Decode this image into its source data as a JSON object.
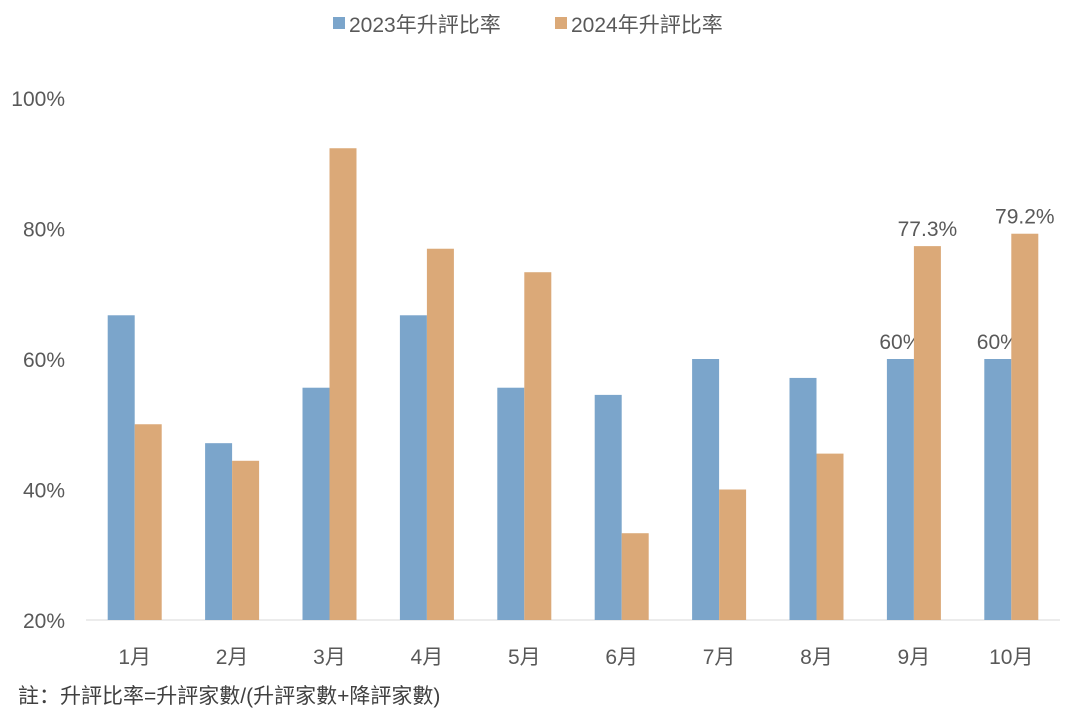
{
  "chart_data": {
    "type": "bar",
    "title": "",
    "xlabel": "",
    "ylabel": "",
    "ylim": [
      20,
      100
    ],
    "yticks": [
      20,
      40,
      60,
      80,
      100
    ],
    "ytick_labels": [
      "20%",
      "40%",
      "60%",
      "80%",
      "100%"
    ],
    "grid": false,
    "legend_position": "top",
    "categories": [
      "1月",
      "2月",
      "3月",
      "4月",
      "5月",
      "6月",
      "7月",
      "8月",
      "9月",
      "10月"
    ],
    "series": [
      {
        "name": "2023年升評比率",
        "color": "#7BA5CB",
        "values": [
          66.7,
          47.1,
          55.6,
          66.7,
          55.6,
          54.5,
          60,
          57.1,
          60,
          60
        ],
        "labels": [
          null,
          null,
          null,
          null,
          null,
          null,
          null,
          null,
          "60%",
          "60%"
        ]
      },
      {
        "name": "2024年升評比率",
        "color": "#DBA978",
        "values": [
          50,
          44.4,
          92.3,
          76.9,
          73.3,
          33.3,
          40,
          45.5,
          77.3,
          79.2
        ],
        "labels": [
          null,
          null,
          null,
          null,
          null,
          null,
          null,
          null,
          "77.3%",
          "79.2%"
        ]
      }
    ],
    "footnote": "註：升評比率=升評家數/(升評家數+降評家數)"
  }
}
